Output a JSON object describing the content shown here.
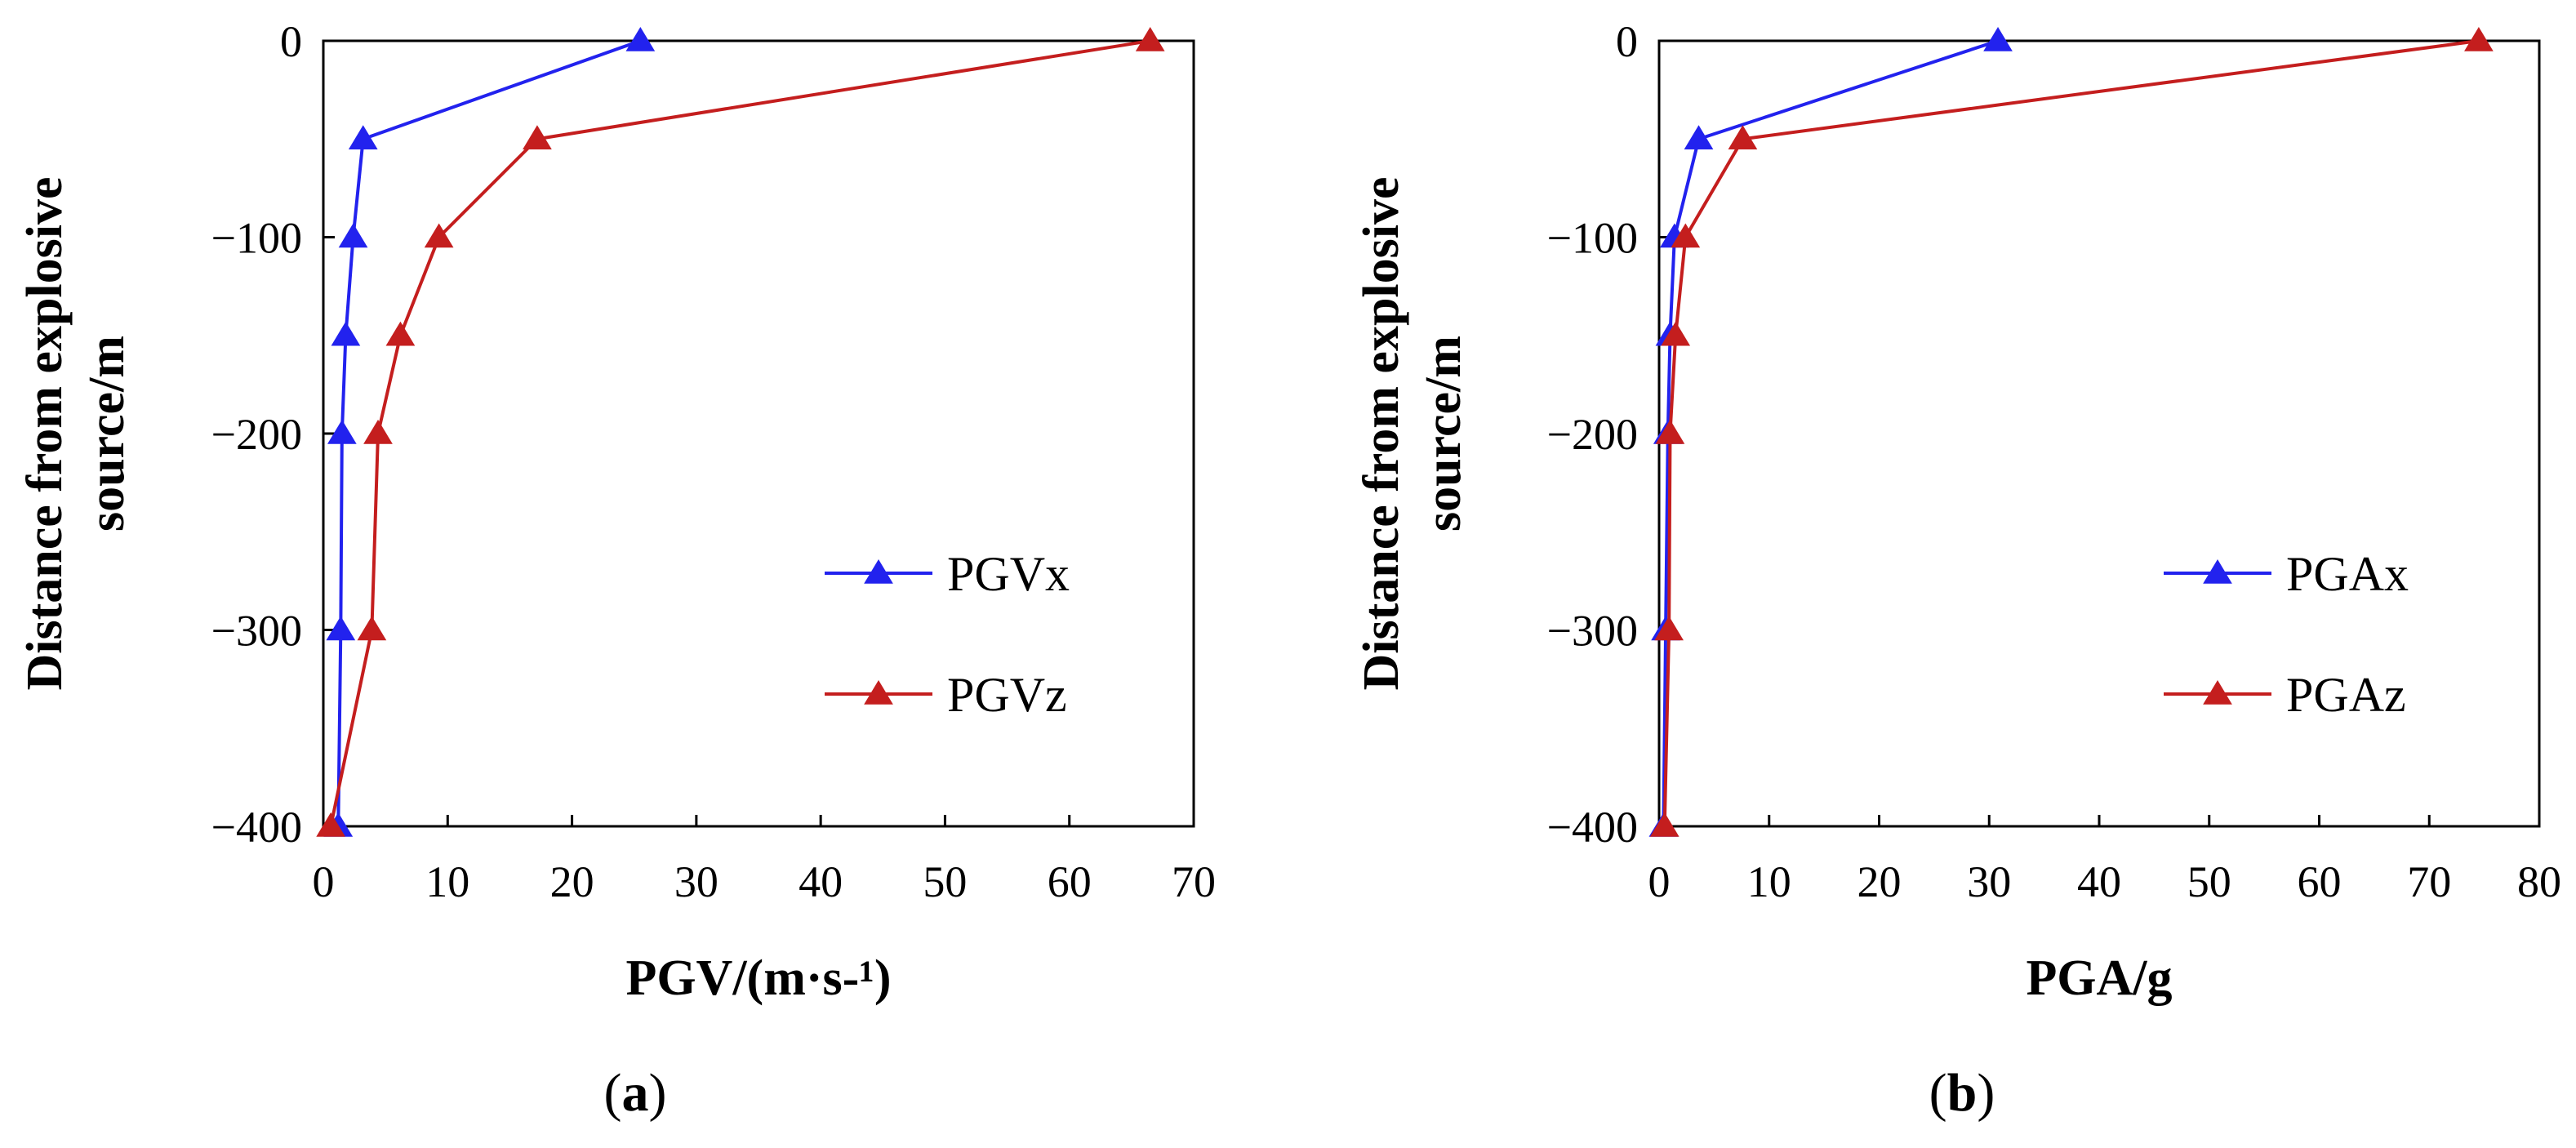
{
  "chart_data": [
    {
      "type": "line",
      "panel_label": "a",
      "xlabel": "PGV/(m·s-¹)",
      "ylabel_line1": "Distance from explosive",
      "ylabel_line2": "source/m",
      "xlim": [
        0,
        70
      ],
      "ylim": [
        -400,
        0
      ],
      "xticks": [
        0,
        10,
        20,
        30,
        40,
        50,
        60,
        70
      ],
      "yticks": [
        0,
        -100,
        -200,
        -300,
        -400
      ],
      "grid": false,
      "legend_position": "right-center",
      "y": [
        0,
        -50,
        -100,
        -150,
        -200,
        -300,
        -400
      ],
      "series": [
        {
          "name": "PGVx",
          "color": "#2222ee",
          "marker": "triangle",
          "x": [
            25.5,
            3.2,
            2.4,
            1.8,
            1.5,
            1.4,
            1.2
          ]
        },
        {
          "name": "PGVz",
          "color": "#c41e1e",
          "marker": "triangle",
          "x": [
            66.5,
            17.2,
            9.3,
            6.2,
            4.4,
            3.9,
            0.6
          ]
        }
      ]
    },
    {
      "type": "line",
      "panel_label": "b",
      "xlabel": "PGA/g",
      "ylabel_line1": "Distance from explosive",
      "ylabel_line2": "source/m",
      "xlim": [
        0,
        80
      ],
      "ylim": [
        -400,
        0
      ],
      "xticks": [
        0,
        10,
        20,
        30,
        40,
        50,
        60,
        70,
        80
      ],
      "yticks": [
        0,
        -100,
        -200,
        -300,
        -400
      ],
      "grid": false,
      "legend_position": "right-center",
      "y": [
        0,
        -50,
        -100,
        -150,
        -200,
        -300,
        -400
      ],
      "series": [
        {
          "name": "PGAx",
          "color": "#2222ee",
          "marker": "triangle",
          "x": [
            30.8,
            3.6,
            1.4,
            1.0,
            0.8,
            0.6,
            0.4
          ]
        },
        {
          "name": "PGAz",
          "color": "#c41e1e",
          "marker": "triangle",
          "x": [
            74.5,
            7.6,
            2.4,
            1.5,
            1.0,
            0.9,
            0.5
          ]
        }
      ]
    }
  ]
}
